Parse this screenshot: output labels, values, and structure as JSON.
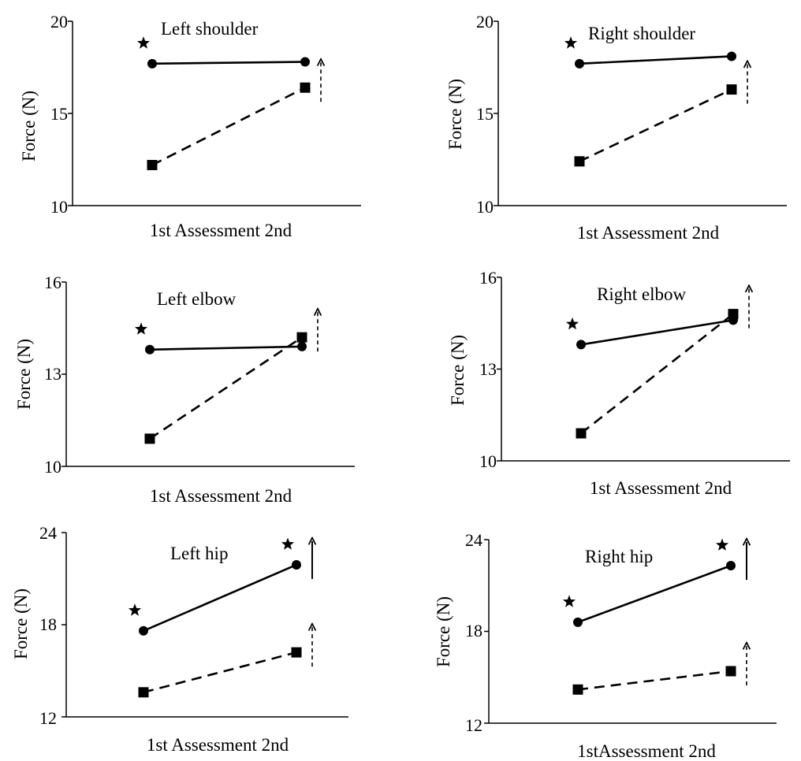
{
  "chart_data": [
    {
      "type": "line",
      "title": "Left shoulder",
      "ylabel": "Force (N)",
      "xlabel": "1st Assessment 2nd",
      "ylim": [
        10,
        20
      ],
      "yticks": [
        "10",
        "15",
        "20"
      ],
      "x": [
        "1st",
        "2nd"
      ],
      "series": [
        {
          "style": "solid-circle",
          "values": [
            17.7,
            17.8
          ]
        },
        {
          "style": "dashed-square",
          "values": [
            12.2,
            16.4
          ]
        }
      ],
      "stars": [
        "1st"
      ],
      "arrows": [
        "dashed"
      ]
    },
    {
      "type": "line",
      "title": "Right shoulder",
      "ylabel": "Force (N)",
      "xlabel": "1st Assessment 2nd",
      "ylim": [
        10,
        20
      ],
      "yticks": [
        "10",
        "15",
        "20"
      ],
      "x": [
        "1st",
        "2nd"
      ],
      "series": [
        {
          "style": "solid-circle",
          "values": [
            17.7,
            18.1
          ]
        },
        {
          "style": "dashed-square",
          "values": [
            12.4,
            16.3
          ]
        }
      ],
      "stars": [
        "1st"
      ],
      "arrows": [
        "dashed"
      ]
    },
    {
      "type": "line",
      "title": "Left elbow",
      "ylabel": "Force (N)",
      "xlabel": "1st Assessment 2nd",
      "ylim": [
        10,
        16
      ],
      "yticks": [
        "10",
        "13",
        "16"
      ],
      "x": [
        "1st",
        "2nd"
      ],
      "series": [
        {
          "style": "solid-circle",
          "values": [
            13.8,
            13.9
          ]
        },
        {
          "style": "dashed-square",
          "values": [
            10.9,
            14.2
          ]
        }
      ],
      "stars": [
        "1st"
      ],
      "arrows": [
        "dashed"
      ]
    },
    {
      "type": "line",
      "title": "Right elbow",
      "ylabel": "Force (N)",
      "xlabel": "1st Assessment 2nd",
      "ylim": [
        10,
        16
      ],
      "yticks": [
        "10",
        "13",
        "16"
      ],
      "x": [
        "1st",
        "2nd"
      ],
      "series": [
        {
          "style": "solid-circle",
          "values": [
            13.8,
            14.6
          ]
        },
        {
          "style": "dashed-square",
          "values": [
            10.9,
            14.8
          ]
        }
      ],
      "stars": [
        "1st"
      ],
      "arrows": [
        "dashed"
      ]
    },
    {
      "type": "line",
      "title": "Left hip",
      "ylabel": "Force (N)",
      "xlabel": "1st Assessment 2nd",
      "ylim": [
        12,
        24
      ],
      "yticks": [
        "12",
        "18",
        "24"
      ],
      "x": [
        "1st",
        "2nd"
      ],
      "series": [
        {
          "style": "solid-circle",
          "values": [
            17.6,
            21.9
          ]
        },
        {
          "style": "dashed-square",
          "values": [
            13.6,
            16.2
          ]
        }
      ],
      "stars": [
        "1st",
        "2nd"
      ],
      "arrows": [
        "solid",
        "dashed"
      ]
    },
    {
      "type": "line",
      "title": "Right hip",
      "ylabel": "Force (N)",
      "xlabel": "1stAssessment 2nd",
      "ylim": [
        12,
        24
      ],
      "yticks": [
        "12",
        "18",
        "24"
      ],
      "x": [
        "1st",
        "2nd"
      ],
      "series": [
        {
          "style": "solid-circle",
          "values": [
            18.6,
            22.3
          ]
        },
        {
          "style": "dashed-square",
          "values": [
            14.2,
            15.4
          ]
        }
      ],
      "stars": [
        "1st",
        "2nd"
      ],
      "arrows": [
        "solid",
        "dashed"
      ]
    }
  ]
}
